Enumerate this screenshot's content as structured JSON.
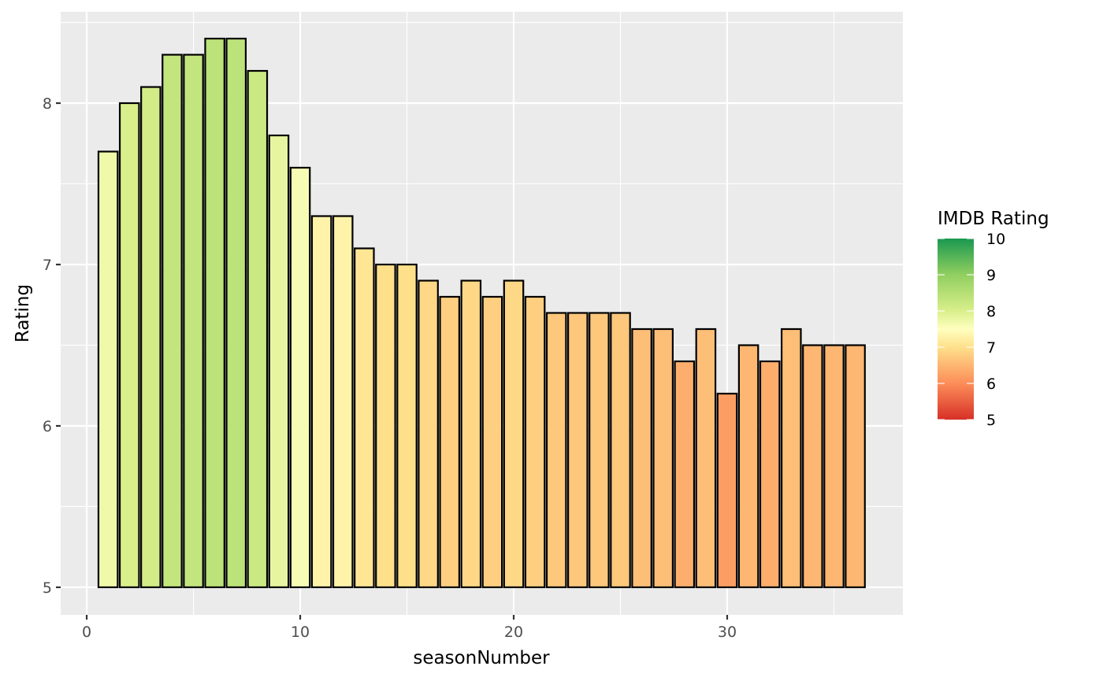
{
  "chart_data": {
    "type": "bar",
    "title": "",
    "xlabel": "seasonNumber",
    "ylabel": "Rating",
    "x": [
      1,
      2,
      3,
      4,
      5,
      6,
      7,
      8,
      9,
      10,
      11,
      12,
      13,
      14,
      15,
      16,
      17,
      18,
      19,
      20,
      21,
      22,
      23,
      24,
      25,
      26,
      27,
      28,
      29,
      30,
      31,
      32,
      33,
      34,
      35,
      36
    ],
    "values": [
      7.7,
      8.0,
      8.1,
      8.3,
      8.3,
      8.4,
      8.4,
      8.2,
      7.8,
      7.6,
      7.3,
      7.3,
      7.1,
      7.0,
      7.0,
      6.9,
      6.8,
      6.9,
      6.8,
      6.9,
      6.8,
      6.7,
      6.7,
      6.7,
      6.7,
      6.6,
      6.6,
      6.4,
      6.6,
      6.2,
      6.5,
      6.4,
      6.6,
      6.5,
      6.5,
      6.5
    ],
    "baseline": 5,
    "xlim": [
      -1.22,
      38.23
    ],
    "ylim": [
      4.829,
      8.566
    ],
    "x_ticks": [
      0,
      10,
      20,
      30
    ],
    "x_tick_labels": [
      "0",
      "10",
      "20",
      "30"
    ],
    "y_ticks": [
      5,
      6,
      7,
      8
    ],
    "y_tick_labels": [
      "5",
      "6",
      "7",
      "8"
    ],
    "grid": true,
    "panel_background": "#ebebeb",
    "grid_color": "#ffffff",
    "bar_outline_color": "#000000",
    "legend": {
      "title": "IMDB Rating",
      "position": "right",
      "type": "colorbar",
      "range": [
        5,
        10
      ],
      "ticks": [
        "10",
        "9",
        "8",
        "7",
        "6",
        "5"
      ],
      "tick_values": [
        10,
        9,
        8,
        7,
        6,
        5
      ],
      "gradient_stops": [
        {
          "value": 5.0,
          "color": "#d73027"
        },
        {
          "value": 6.0,
          "color": "#fc8d59"
        },
        {
          "value": 7.0,
          "color": "#fee08b"
        },
        {
          "value": 7.5,
          "color": "#ffffbf"
        },
        {
          "value": 8.0,
          "color": "#d9ef8b"
        },
        {
          "value": 9.0,
          "color": "#91cf60"
        },
        {
          "value": 10.0,
          "color": "#1a9850"
        }
      ]
    }
  }
}
